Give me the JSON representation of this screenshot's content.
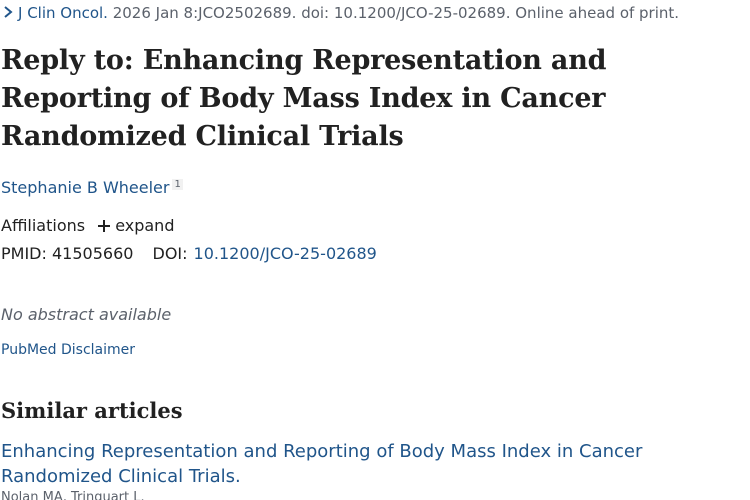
{
  "citation": {
    "journal": "J Clin Oncol.",
    "details": " 2026 Jan 8:JCO2502689. doi: 10.1200/JCO-25-02689. Online ahead of print."
  },
  "article": {
    "title": "Reply to: Enhancing Representation and Reporting of Body Mass Index in Cancer Randomized Clinical Trials",
    "author": "Stephanie B Wheeler",
    "author_affiliation_number": "1",
    "affiliations_label": "Affiliations",
    "expand_label": "expand",
    "pmid_label": "PMID:",
    "pmid": "41505660",
    "doi_label": "DOI:",
    "doi": "10.1200/JCO-25-02689",
    "no_abstract": "No abstract available",
    "disclaimer": "PubMed Disclaimer"
  },
  "similar": {
    "heading": "Similar articles",
    "items": [
      {
        "title": "Enhancing Representation and Reporting of Body Mass Index in Cancer Randomized Clinical Trials.",
        "authors": "Nolan MA, Trinquart L."
      }
    ]
  },
  "icons": {
    "citation": "chevron-right-icon",
    "expand": "plus-icon"
  },
  "colors": {
    "link": "#20558a",
    "text": "#212121",
    "muted": "#5b616b"
  }
}
